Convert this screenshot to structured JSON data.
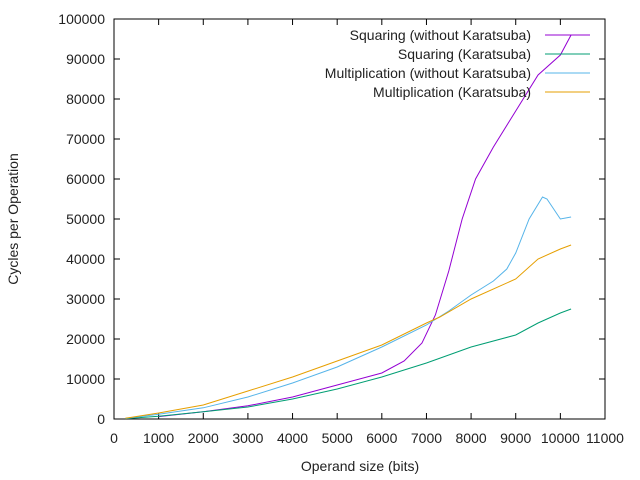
{
  "chart_data": {
    "type": "line",
    "title": "",
    "xlabel": "Operand size (bits)",
    "ylabel": "Cycles per Operation",
    "xlim": [
      0,
      11000
    ],
    "ylim": [
      0,
      100000
    ],
    "xticks": [
      0,
      1000,
      2000,
      3000,
      4000,
      5000,
      6000,
      7000,
      8000,
      9000,
      10000,
      11000
    ],
    "yticks": [
      0,
      10000,
      20000,
      30000,
      40000,
      50000,
      60000,
      70000,
      80000,
      90000,
      100000
    ],
    "legend_position": "top-right",
    "series": [
      {
        "name": "Squaring (without Karatsuba)",
        "color": "#9400d3",
        "x": [
          1000,
          2000,
          3000,
          4000,
          5000,
          6000,
          6500,
          6900,
          7200,
          7500,
          7800,
          8100,
          8500,
          9000,
          9500,
          10000,
          10240
        ],
        "y": [
          600,
          1800,
          3300,
          5500,
          8500,
          11500,
          14500,
          19000,
          26000,
          37000,
          50000,
          60000,
          68000,
          77000,
          86000,
          91000,
          96000
        ]
      },
      {
        "name": "Squaring (Karatsuba)",
        "color": "#009e73",
        "x": [
          256,
          1000,
          2000,
          3000,
          4000,
          5000,
          6000,
          7000,
          8000,
          9000,
          9500,
          10000,
          10240
        ],
        "y": [
          100,
          700,
          1800,
          3000,
          5000,
          7500,
          10500,
          14000,
          18000,
          21000,
          24000,
          26500,
          27500
        ]
      },
      {
        "name": "Multiplication (without Karatsuba)",
        "color": "#56b4e9",
        "x": [
          256,
          1000,
          2000,
          3000,
          4000,
          5000,
          6000,
          7000,
          7500,
          8000,
          8500,
          8800,
          9000,
          9300,
          9600,
          9700,
          10000,
          10240
        ],
        "y": [
          150,
          1200,
          2800,
          5500,
          9000,
          13000,
          18000,
          23500,
          27000,
          31000,
          34500,
          37500,
          41500,
          50000,
          55500,
          55000,
          50000,
          50500
        ]
      },
      {
        "name": "Multiplication (Karatsuba)",
        "color": "#e69f00",
        "x": [
          256,
          1000,
          2000,
          3000,
          4000,
          5000,
          6000,
          7000,
          7300,
          8000,
          9000,
          9500,
          10000,
          10240
        ],
        "y": [
          200,
          1500,
          3500,
          7000,
          10500,
          14500,
          18500,
          24000,
          25500,
          30000,
          35000,
          40000,
          42500,
          43500
        ]
      }
    ]
  }
}
